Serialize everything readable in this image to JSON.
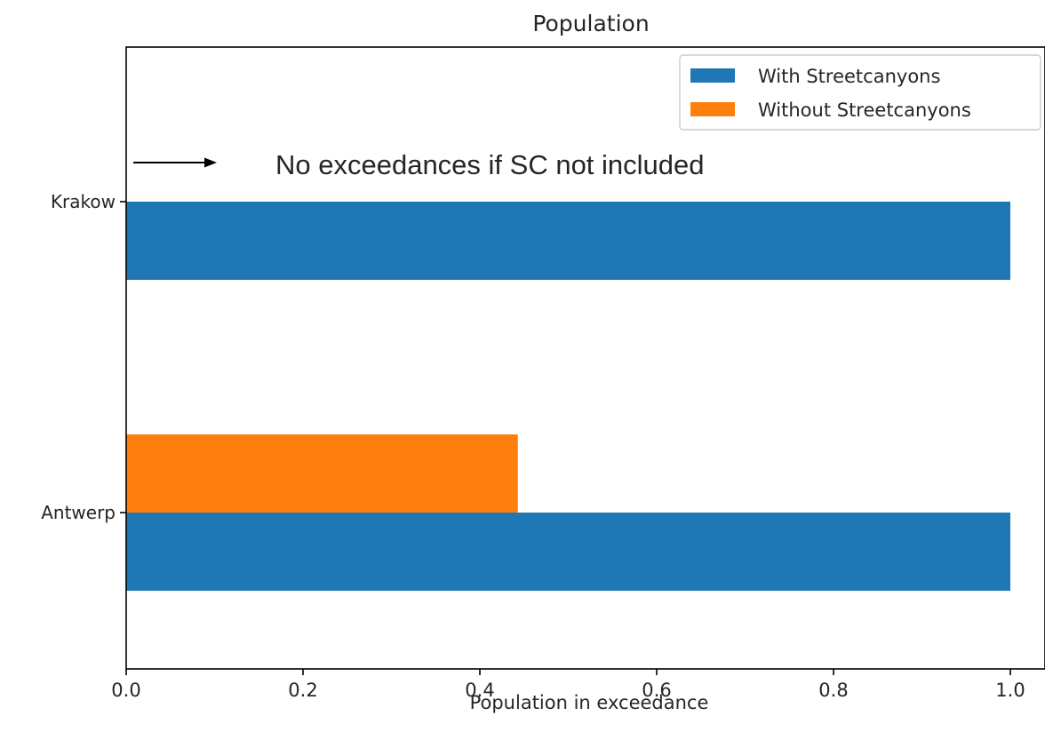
{
  "chart_data": {
    "type": "bar",
    "orientation": "horizontal",
    "title": "Population",
    "xlabel": "Population in exceedance",
    "ylabel": "",
    "categories": [
      "Antwerp",
      "Krakow"
    ],
    "series": [
      {
        "name": "With Streetcanyons",
        "color": "#1f77b4",
        "values": [
          1.0,
          1.0
        ]
      },
      {
        "name": "Without Streetcanyons",
        "color": "#ff7f0e",
        "values": [
          0.443,
          0.0
        ]
      }
    ],
    "xlim": [
      0.0,
      1.0
    ],
    "xticks": [
      "0.0",
      "0.2",
      "0.4",
      "0.6",
      "0.8",
      "1.0"
    ],
    "legend_position": "top-right",
    "grid": false,
    "annotation": {
      "text": "No exceedances if SC not included",
      "arrow": "right-arrow"
    }
  }
}
